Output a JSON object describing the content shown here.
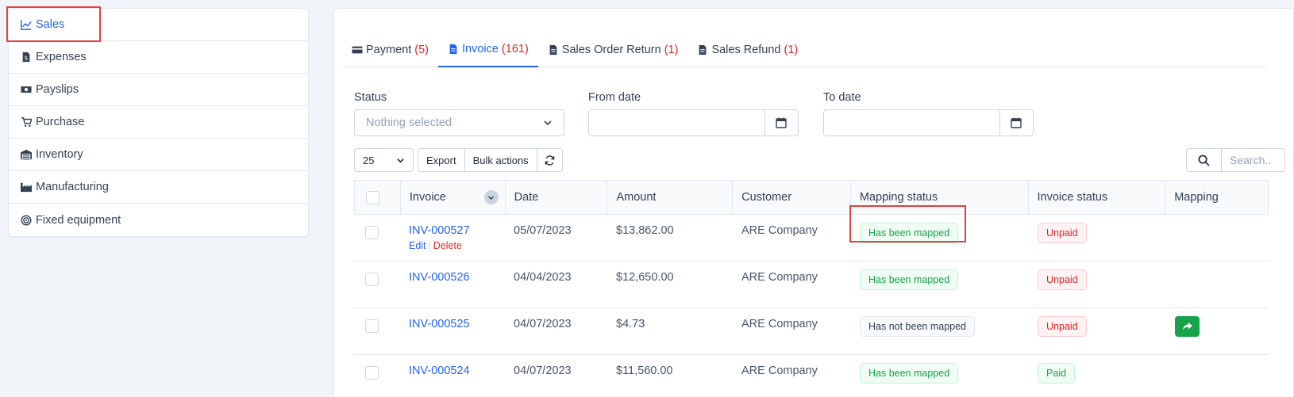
{
  "sidebar": {
    "items": [
      {
        "label": "Sales",
        "icon": "chart-line-icon"
      },
      {
        "label": "Expenses",
        "icon": "file-dollar-icon"
      },
      {
        "label": "Payslips",
        "icon": "money-bill-icon"
      },
      {
        "label": "Purchase",
        "icon": "cart-icon"
      },
      {
        "label": "Inventory",
        "icon": "warehouse-icon"
      },
      {
        "label": "Manufacturing",
        "icon": "industry-icon"
      },
      {
        "label": "Fixed equipment",
        "icon": "bullseye-icon"
      }
    ]
  },
  "tabs": [
    {
      "label": "Payment",
      "count": "(5)"
    },
    {
      "label": "Invoice",
      "count": "(161)"
    },
    {
      "label": "Sales Order Return",
      "count": "(1)"
    },
    {
      "label": "Sales Refund",
      "count": "(1)"
    }
  ],
  "filters": {
    "status_label": "Status",
    "status_placeholder": "Nothing selected",
    "from_label": "From date",
    "to_label": "To date"
  },
  "toolbar": {
    "page_size": "25",
    "export": "Export",
    "bulk": "Bulk actions",
    "search_placeholder": "Search.."
  },
  "table": {
    "headers": [
      "Invoice",
      "Date",
      "Amount",
      "Customer",
      "Mapping status",
      "Invoice status",
      "Mapping"
    ],
    "row_actions": {
      "edit": "Edit",
      "delete": "Delete"
    },
    "rows": [
      {
        "invoice": "INV-000527",
        "date": "05/07/2023",
        "amount": "$13,862.00",
        "customer": "ARE Company",
        "mapping_status": "Has been mapped",
        "invoice_status": "Unpaid"
      },
      {
        "invoice": "INV-000526",
        "date": "04/04/2023",
        "amount": "$12,650.00",
        "customer": "ARE Company",
        "mapping_status": "Has been mapped",
        "invoice_status": "Unpaid"
      },
      {
        "invoice": "INV-000525",
        "date": "04/07/2023",
        "amount": "$4.73",
        "customer": "ARE Company",
        "mapping_status": "Has not been mapped",
        "invoice_status": "Unpaid"
      },
      {
        "invoice": "INV-000524",
        "date": "04/07/2023",
        "amount": "$11,560.00",
        "customer": "ARE Company",
        "mapping_status": "Has been mapped",
        "invoice_status": "Paid"
      }
    ]
  },
  "colors": {
    "accent": "#2563eb",
    "danger": "#dc2626",
    "success": "#16a34a",
    "highlight": "#e53e3e"
  }
}
